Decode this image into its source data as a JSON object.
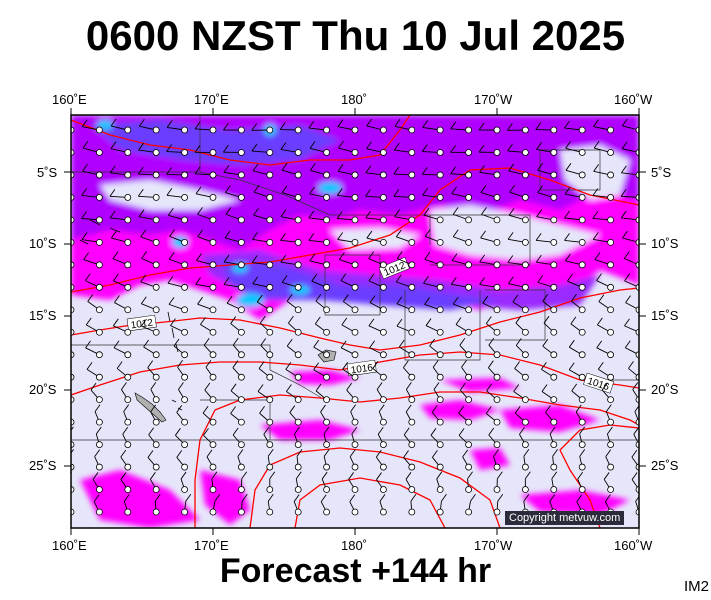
{
  "title": "0600 NZST Thu 10 Jul 2025",
  "footer": "Forecast +144 hr",
  "image_code": "IM2",
  "copyright": "Copyright metvuw.com",
  "axes": {
    "lon_top": [
      "160˚E",
      "170˚E",
      "180˚",
      "170˚W",
      "160˚W"
    ],
    "lon_bottom": [
      "160˚E",
      "170˚E",
      "180˚",
      "170˚W",
      "160˚W"
    ],
    "lat_left": [
      "5˚S",
      "10˚S",
      "15˚S",
      "20˚S",
      "25˚S"
    ],
    "lat_right": [
      "5˚S",
      "10˚S",
      "15˚S",
      "20˚S",
      "25˚S"
    ]
  },
  "isobar_labels": [
    "1012",
    "1012",
    "1016",
    "1016"
  ],
  "colors": {
    "ocean": "#e6e6fa",
    "precip_light": "#ff00ff",
    "precip_medium": "#b000ff",
    "precip_heavy": "#6a3cff",
    "precip_intense": "#00c8ff",
    "isobar": "#ff0000",
    "land": "#b0b0b0"
  }
}
